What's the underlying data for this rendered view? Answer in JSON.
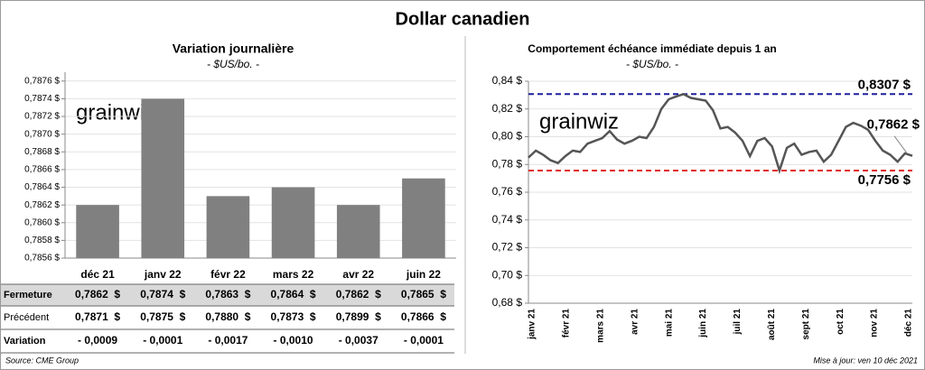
{
  "header": {
    "title": "Dollar canadien",
    "watermark": "grainwiz"
  },
  "chart_data": [
    {
      "type": "bar",
      "title": "Variation  journalière",
      "subtitle": "- $US/bo. -",
      "categories": [
        "déc 21",
        "janv 22",
        "févr 22",
        "mars 22",
        "avr 22",
        "juin 22"
      ],
      "values": [
        0.7862,
        0.7874,
        0.7863,
        0.7864,
        0.7862,
        0.7865
      ],
      "color": "#808080",
      "ylim": [
        0.7856,
        0.7877
      ],
      "yticks": [
        {
          "value": 0.7856,
          "label": "0,7856 $"
        },
        {
          "value": 0.7858,
          "label": "0,7858 $"
        },
        {
          "value": 0.786,
          "label": "0,7860 $"
        },
        {
          "value": 0.7862,
          "label": "0,7862 $"
        },
        {
          "value": 0.7864,
          "label": "0,7864 $"
        },
        {
          "value": 0.7866,
          "label": "0,7866 $"
        },
        {
          "value": 0.7868,
          "label": "0,7868 $"
        },
        {
          "value": 0.787,
          "label": "0,7870 $"
        },
        {
          "value": 0.7872,
          "label": "0,7872 $"
        },
        {
          "value": 0.7874,
          "label": "0,7874 $"
        },
        {
          "value": 0.7876,
          "label": "0,7876 $"
        }
      ],
      "grid": true
    },
    {
      "type": "line",
      "title": "Comportement échéance immédiate depuis 1 an",
      "subtitle": "- $US/bo. -",
      "x_tick_labels": [
        "janv 21",
        "févr 21",
        "mars 21",
        "avr 21",
        "mai 21",
        "juin 21",
        "juil 21",
        "août 21",
        "sept 21",
        "oct 21",
        "nov 21",
        "déc 21"
      ],
      "series": [
        {
          "color": "#555555",
          "values": [
            0.785,
            0.79,
            0.787,
            0.783,
            0.781,
            0.786,
            0.79,
            0.789,
            0.795,
            0.797,
            0.799,
            0.804,
            0.798,
            0.795,
            0.797,
            0.8,
            0.799,
            0.807,
            0.82,
            0.827,
            0.829,
            0.8307,
            0.828,
            0.827,
            0.826,
            0.819,
            0.806,
            0.807,
            0.803,
            0.797,
            0.786,
            0.797,
            0.799,
            0.793,
            0.7756,
            0.792,
            0.795,
            0.787,
            0.789,
            0.79,
            0.782,
            0.787,
            0.797,
            0.807,
            0.81,
            0.808,
            0.805,
            0.797,
            0.79,
            0.787,
            0.782,
            0.788,
            0.7862
          ]
        }
      ],
      "ylim": [
        0.68,
        0.84
      ],
      "yticks": [
        {
          "value": 0.68,
          "label": "0,68 $"
        },
        {
          "value": 0.7,
          "label": "0,70 $"
        },
        {
          "value": 0.72,
          "label": "0,72 $"
        },
        {
          "value": 0.74,
          "label": "0,74 $"
        },
        {
          "value": 0.76,
          "label": "0,76 $"
        },
        {
          "value": 0.78,
          "label": "0,78 $"
        },
        {
          "value": 0.8,
          "label": "0,80 $"
        },
        {
          "value": 0.82,
          "label": "0,82 $"
        },
        {
          "value": 0.84,
          "label": "0,84 $"
        }
      ],
      "grid": true,
      "reference_lines": [
        {
          "value": 0.8307,
          "label": "0,8307 $",
          "color": "#1f1f9e"
        },
        {
          "value": 0.7756,
          "label": "0,7756 $",
          "color": "#e02020"
        }
      ],
      "last_label": {
        "value": 0.7862,
        "label": "0,7862 $"
      }
    }
  ],
  "table": {
    "rows": [
      {
        "label": "Fermeture",
        "cells": [
          "0,7862  $",
          "0,7874  $",
          "0,7863  $",
          "0,7864  $",
          "0,7862  $",
          "0,7865  $"
        ]
      },
      {
        "label": "Précédent",
        "cells": [
          "0,7871  $",
          "0,7875  $",
          "0,7880  $",
          "0,7873  $",
          "0,7899  $",
          "0,7866  $"
        ]
      },
      {
        "label": "Variation",
        "cells": [
          "- 0,0009",
          "- 0,0001",
          "- 0,0017",
          "- 0,0010",
          "- 0,0037",
          "- 0,0001"
        ]
      }
    ]
  },
  "footer": {
    "source": "Source: CME Group",
    "updated": "Mise à jour: ven 10 déc 2021"
  }
}
